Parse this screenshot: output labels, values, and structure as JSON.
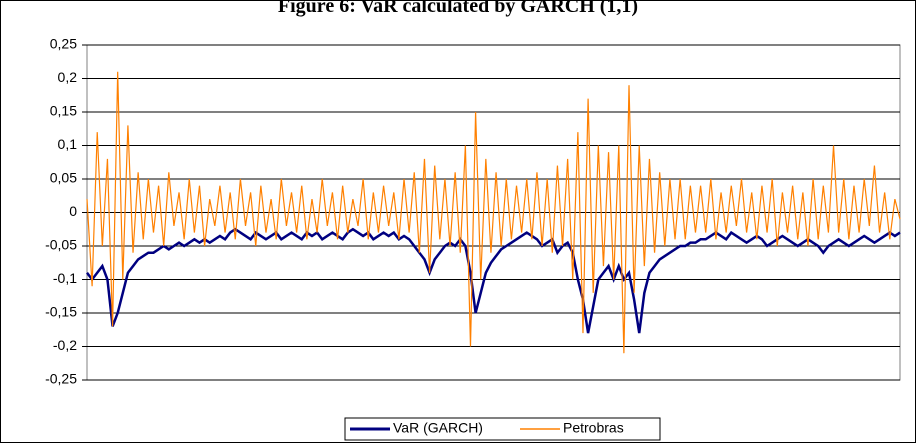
{
  "chart_data": {
    "type": "line",
    "title": "Figure 6: VaR calculated by GARCH (1,1)",
    "ylim": [
      -0.25,
      0.25
    ],
    "yticks": [
      {
        "value": -0.25,
        "label": "-0,25"
      },
      {
        "value": -0.2,
        "label": "-0,2"
      },
      {
        "value": -0.15,
        "label": "-0,15"
      },
      {
        "value": -0.1,
        "label": "-0,1"
      },
      {
        "value": -0.05,
        "label": "-0,05"
      },
      0,
      {
        "value": 0.05,
        "label": "0,05"
      },
      {
        "value": 0.1,
        "label": "0,1"
      },
      {
        "value": 0.15,
        "label": "0,15"
      },
      {
        "value": 0.2,
        "label": "0,2"
      },
      {
        "value": 0.25,
        "label": "0,25"
      }
    ],
    "grid": true,
    "legend": "bottom",
    "series": [
      {
        "name": "VaR (GARCH)",
        "color": "#000080",
        "values": [
          -0.09,
          -0.1,
          -0.09,
          -0.08,
          -0.1,
          -0.17,
          -0.15,
          -0.12,
          -0.09,
          -0.08,
          -0.07,
          -0.065,
          -0.06,
          -0.06,
          -0.055,
          -0.05,
          -0.055,
          -0.05,
          -0.045,
          -0.05,
          -0.045,
          -0.04,
          -0.045,
          -0.04,
          -0.045,
          -0.04,
          -0.035,
          -0.04,
          -0.03,
          -0.025,
          -0.03,
          -0.035,
          -0.04,
          -0.03,
          -0.035,
          -0.04,
          -0.035,
          -0.03,
          -0.04,
          -0.035,
          -0.03,
          -0.035,
          -0.04,
          -0.03,
          -0.035,
          -0.03,
          -0.04,
          -0.035,
          -0.03,
          -0.035,
          -0.04,
          -0.03,
          -0.025,
          -0.03,
          -0.035,
          -0.03,
          -0.04,
          -0.035,
          -0.03,
          -0.035,
          -0.03,
          -0.04,
          -0.035,
          -0.04,
          -0.05,
          -0.06,
          -0.07,
          -0.09,
          -0.07,
          -0.06,
          -0.05,
          -0.045,
          -0.05,
          -0.04,
          -0.05,
          -0.09,
          -0.15,
          -0.12,
          -0.09,
          -0.075,
          -0.065,
          -0.055,
          -0.05,
          -0.045,
          -0.04,
          -0.035,
          -0.03,
          -0.035,
          -0.04,
          -0.05,
          -0.045,
          -0.04,
          -0.06,
          -0.05,
          -0.045,
          -0.06,
          -0.1,
          -0.13,
          -0.18,
          -0.14,
          -0.1,
          -0.09,
          -0.08,
          -0.1,
          -0.08,
          -0.1,
          -0.09,
          -0.13,
          -0.18,
          -0.12,
          -0.09,
          -0.08,
          -0.07,
          -0.065,
          -0.06,
          -0.055,
          -0.05,
          -0.05,
          -0.045,
          -0.045,
          -0.04,
          -0.04,
          -0.035,
          -0.03,
          -0.035,
          -0.04,
          -0.03,
          -0.035,
          -0.04,
          -0.045,
          -0.04,
          -0.035,
          -0.04,
          -0.05,
          -0.045,
          -0.04,
          -0.035,
          -0.04,
          -0.045,
          -0.05,
          -0.045,
          -0.04,
          -0.045,
          -0.05,
          -0.06,
          -0.05,
          -0.045,
          -0.04,
          -0.045,
          -0.05,
          -0.045,
          -0.04,
          -0.035,
          -0.04,
          -0.045,
          -0.04,
          -0.035,
          -0.03,
          -0.035,
          -0.03
        ]
      },
      {
        "name": "Petrobras",
        "color": "#ff8000",
        "values": [
          0.02,
          -0.11,
          0.12,
          -0.05,
          0.08,
          -0.17,
          0.21,
          -0.1,
          0.13,
          -0.06,
          0.06,
          -0.04,
          0.05,
          -0.03,
          0.04,
          -0.05,
          0.06,
          -0.02,
          0.03,
          -0.04,
          0.05,
          -0.03,
          0.04,
          -0.05,
          0.02,
          -0.02,
          0.04,
          -0.03,
          0.03,
          -0.04,
          0.05,
          -0.02,
          0.03,
          -0.05,
          0.04,
          -0.03,
          0.02,
          -0.04,
          0.05,
          -0.02,
          0.03,
          -0.03,
          0.04,
          -0.04,
          0.02,
          -0.03,
          0.05,
          -0.02,
          0.03,
          -0.04,
          0.04,
          -0.03,
          0.02,
          -0.02,
          0.05,
          -0.04,
          0.03,
          -0.03,
          0.04,
          -0.02,
          0.03,
          -0.04,
          0.05,
          -0.03,
          0.06,
          -0.06,
          0.08,
          -0.09,
          0.07,
          -0.04,
          0.05,
          -0.05,
          0.06,
          -0.06,
          0.1,
          -0.2,
          0.15,
          -0.1,
          0.08,
          -0.06,
          0.06,
          -0.05,
          0.05,
          -0.04,
          0.04,
          -0.03,
          0.05,
          -0.04,
          0.06,
          -0.05,
          0.05,
          -0.06,
          0.07,
          -0.05,
          0.08,
          -0.1,
          0.12,
          -0.18,
          0.17,
          -0.12,
          0.1,
          -0.08,
          0.09,
          -0.1,
          0.1,
          -0.21,
          0.19,
          -0.12,
          0.1,
          -0.08,
          0.08,
          -0.06,
          0.06,
          -0.05,
          0.05,
          -0.04,
          0.05,
          -0.04,
          0.04,
          -0.03,
          0.04,
          -0.03,
          0.05,
          -0.04,
          0.03,
          -0.03,
          0.04,
          -0.02,
          0.05,
          -0.03,
          0.03,
          -0.04,
          0.04,
          -0.03,
          0.05,
          -0.05,
          0.03,
          -0.03,
          0.04,
          -0.04,
          0.03,
          -0.05,
          0.05,
          -0.04,
          0.04,
          -0.03,
          0.1,
          -0.03,
          0.05,
          -0.04,
          0.04,
          -0.03,
          0.05,
          -0.02,
          0.07,
          -0.03,
          0.03,
          -0.04,
          0.02,
          -0.01
        ]
      }
    ]
  }
}
